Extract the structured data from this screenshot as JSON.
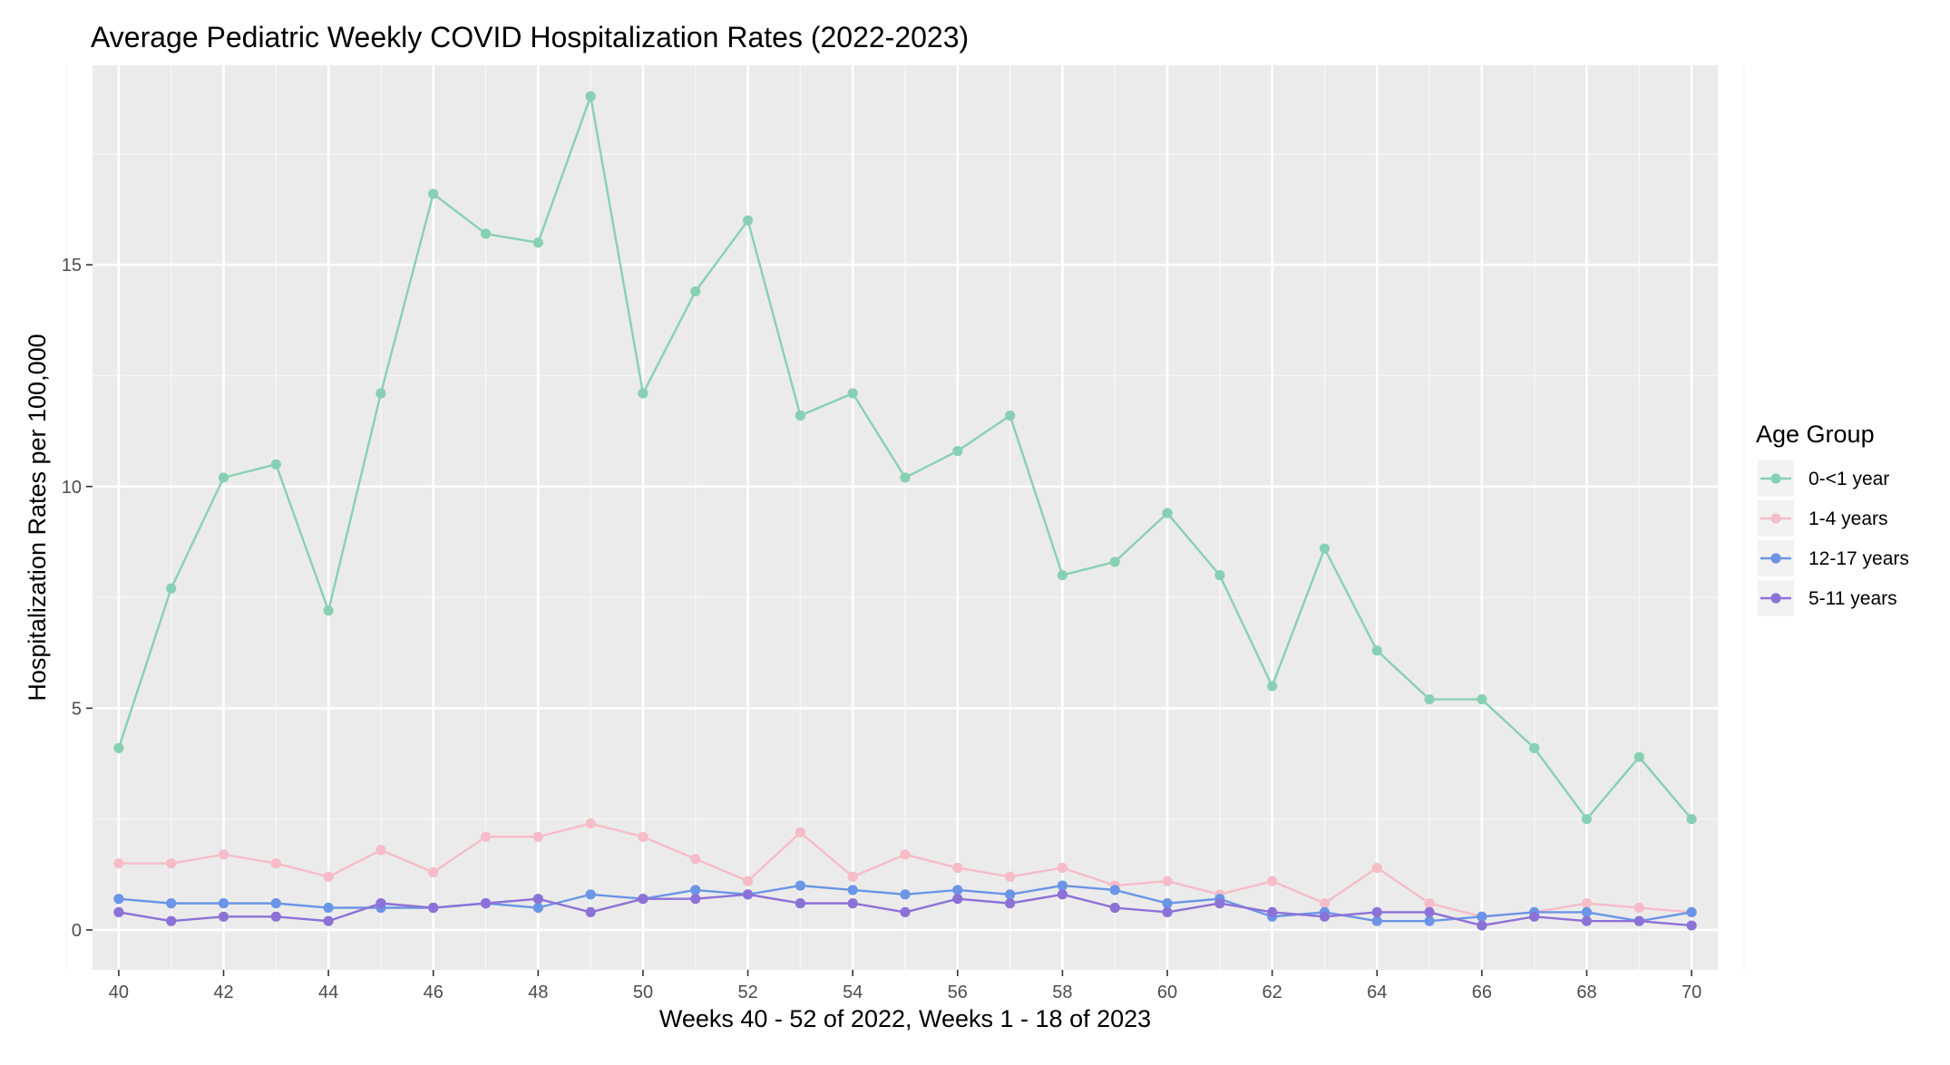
{
  "chart_data": {
    "type": "line",
    "title": "Average Pediatric Weekly COVID Hospitalization Rates (2022-2023)",
    "xlabel": "Weeks 40 - 52 of 2022, Weeks 1 - 18 of 2023",
    "ylabel": "Hospitalization Rates per 100,000",
    "xlim": [
      39.5,
      70.5
    ],
    "ylim": [
      -0.9,
      19.5
    ],
    "x_ticks": [
      40,
      42,
      44,
      46,
      48,
      50,
      52,
      54,
      56,
      58,
      60,
      62,
      64,
      66,
      68,
      70
    ],
    "y_ticks": [
      0,
      5,
      10,
      15
    ],
    "grid": true,
    "legend": {
      "title": "Age Group",
      "position": "right"
    },
    "x": [
      40,
      41,
      42,
      43,
      44,
      45,
      46,
      47,
      48,
      49,
      50,
      51,
      52,
      53,
      54,
      55,
      56,
      57,
      58,
      59,
      60,
      61,
      62,
      63,
      64,
      65,
      66,
      67,
      68,
      69,
      70
    ],
    "series": [
      {
        "name": "0-<1 year",
        "color": "#88d0b4",
        "values": [
          4.1,
          7.7,
          10.2,
          10.5,
          7.2,
          12.1,
          16.6,
          15.7,
          15.5,
          18.8,
          12.1,
          14.4,
          16.0,
          11.6,
          12.1,
          10.2,
          10.8,
          11.6,
          8.0,
          8.3,
          9.4,
          8.0,
          5.5,
          8.6,
          6.3,
          5.2,
          5.2,
          4.1,
          2.5,
          3.9,
          2.5
        ]
      },
      {
        "name": "1-4 years",
        "color": "#f6bcc8",
        "values": [
          1.5,
          1.5,
          1.7,
          1.5,
          1.2,
          1.8,
          1.3,
          2.1,
          2.1,
          2.4,
          2.1,
          1.6,
          1.1,
          2.2,
          1.2,
          1.7,
          1.4,
          1.2,
          1.4,
          1.0,
          1.1,
          0.8,
          1.1,
          0.6,
          1.4,
          0.6,
          0.3,
          0.4,
          0.6,
          0.5,
          0.4
        ]
      },
      {
        "name": "12-17 years",
        "color": "#6b95e6",
        "values": [
          0.7,
          0.6,
          0.6,
          0.6,
          0.5,
          0.5,
          0.5,
          0.6,
          0.5,
          0.8,
          0.7,
          0.9,
          0.8,
          1.0,
          0.9,
          0.8,
          0.9,
          0.8,
          1.0,
          0.9,
          0.6,
          0.7,
          0.3,
          0.4,
          0.2,
          0.2,
          0.3,
          0.4,
          0.4,
          0.2,
          0.4
        ]
      },
      {
        "name": "5-11 years",
        "color": "#8c72d6",
        "values": [
          0.4,
          0.2,
          0.3,
          0.3,
          0.2,
          0.6,
          0.5,
          0.6,
          0.7,
          0.4,
          0.7,
          0.7,
          0.8,
          0.6,
          0.6,
          0.4,
          0.7,
          0.6,
          0.8,
          0.5,
          0.4,
          0.6,
          0.4,
          0.3,
          0.4,
          0.4,
          0.1,
          0.3,
          0.2,
          0.2,
          0.1
        ]
      }
    ]
  }
}
